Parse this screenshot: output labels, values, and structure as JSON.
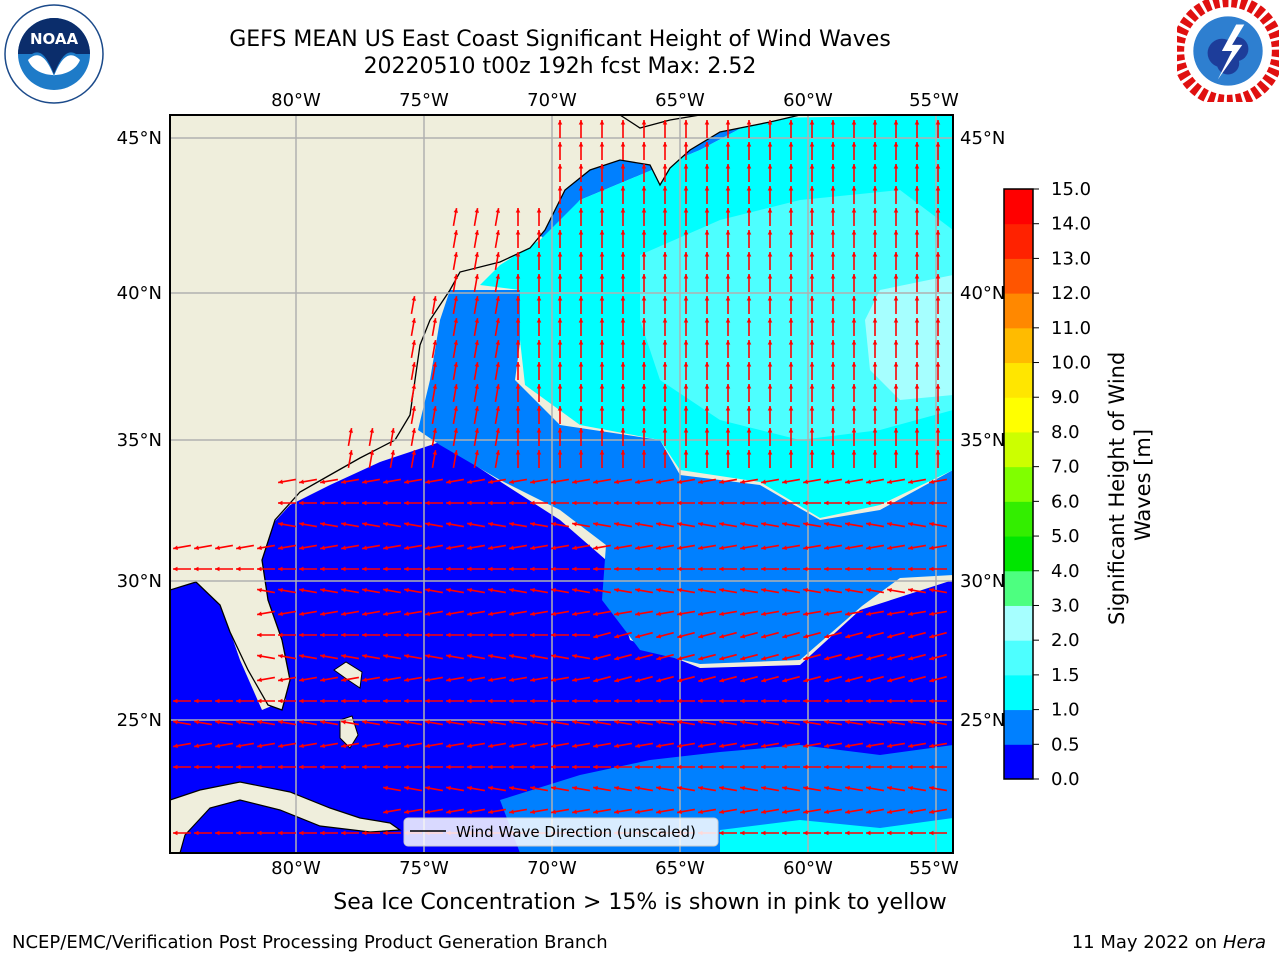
{
  "title": {
    "line1": "GEFS MEAN US East Coast Significant Height of Wind Waves",
    "line2": "20220510 t00z 192h fcst   Max: 2.52"
  },
  "logos": {
    "noaa": {
      "text": "NOAA",
      "ring": "NATIONAL OCEANIC AND ATMOSPHERIC ADMINISTRATION · U.S. DEPARTMENT OF COMMERCE"
    },
    "nws": {
      "ring": "NATIONAL WEATHER SERVICE"
    }
  },
  "map": {
    "lon_labels": [
      "80°W",
      "75°W",
      "70°W",
      "65°W",
      "60°W",
      "55°W"
    ],
    "lat_labels": [
      "45°N",
      "40°N",
      "35°N",
      "30°N",
      "25°N"
    ],
    "lon_range": [
      -85,
      -54.5
    ],
    "lat_range": [
      20,
      46
    ],
    "legend_label": "Wind Wave Direction (unscaled)",
    "arrow_color": "#ff0000",
    "land_color": "#efeedc",
    "grid_color": "#b0b0b0"
  },
  "colorbar": {
    "label": "Significant Height of Wind Waves [m]",
    "levels": [
      "0.0",
      "0.5",
      "1.0",
      "1.5",
      "2.0",
      "3.0",
      "4.0",
      "5.0",
      "6.0",
      "7.0",
      "8.0",
      "9.0",
      "10.0",
      "11.0",
      "12.0",
      "13.0",
      "14.0",
      "15.0"
    ],
    "colors": [
      "#0000ff",
      "#0080ff",
      "#00ffff",
      "#4dffff",
      "#a6ffff",
      "#4dff80",
      "#00e600",
      "#33ee00",
      "#80ff00",
      "#ccff00",
      "#ffff00",
      "#ffe600",
      "#ffbb00",
      "#ff8800",
      "#ff5500",
      "#ff2200",
      "#ff0000"
    ]
  },
  "footer": {
    "ice_note": "Sea Ice Concentration > 15% is shown in pink to yellow",
    "branch": "NCEP/EMC/Verification Post Processing Product Generation Branch",
    "date": "11 May 2022 on",
    "host": "Hera"
  }
}
